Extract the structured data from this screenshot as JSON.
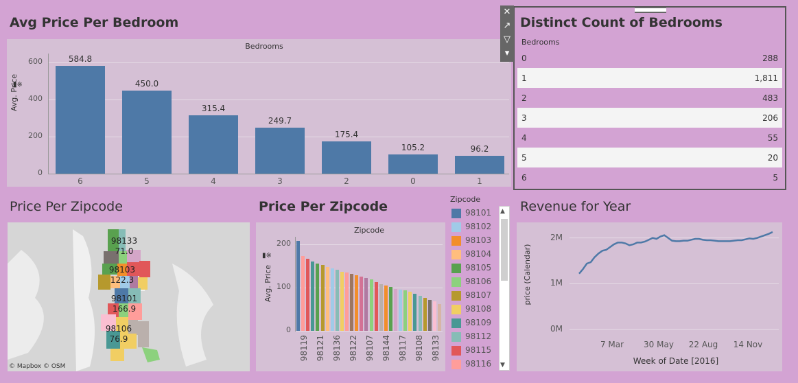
{
  "bedroom_chart": {
    "title": "Avg Price Per Bedroom",
    "header": "Bedrooms",
    "ylabel": "Avg. Price",
    "yticks": [
      "600",
      "400",
      "200",
      "0"
    ],
    "chart_data": {
      "type": "bar",
      "categories": [
        "6",
        "5",
        "4",
        "3",
        "2",
        "0",
        "1"
      ],
      "values": [
        584.8,
        450.0,
        315.4,
        249.7,
        175.4,
        105.2,
        96.2
      ],
      "value_labels": [
        "584.8",
        "450.0",
        "315.4",
        "249.7",
        "175.4",
        "105.2",
        "96.2"
      ],
      "ylim": [
        0,
        650
      ]
    }
  },
  "bedroom_table": {
    "title": "Distinct Count of Bedrooms",
    "header": "Bedrooms",
    "rows": [
      {
        "label": "0",
        "value": "288"
      },
      {
        "label": "1",
        "value": "1,811"
      },
      {
        "label": "2",
        "value": "483"
      },
      {
        "label": "3",
        "value": "206"
      },
      {
        "label": "4",
        "value": "55"
      },
      {
        "label": "5",
        "value": "20"
      },
      {
        "label": "6",
        "value": "5"
      }
    ],
    "toolbar": [
      "close-icon",
      "popout-icon",
      "filter-icon",
      "dropdown-icon"
    ]
  },
  "map": {
    "title": "Price Per Zipcode",
    "attribution": "© Mapbox © OSM",
    "labels": [
      {
        "zip": "98133",
        "value": "71.0"
      },
      {
        "zip": "98103",
        "value": "122.3"
      },
      {
        "zip": "98101",
        "value": "166.9"
      },
      {
        "zip": "98106",
        "value": "76.9"
      }
    ]
  },
  "zipcode_chart": {
    "title": "Price Per Zipcode",
    "header": "Zipcode",
    "ylabel": "Avg. Price",
    "yticks": [
      "200",
      "100",
      "0"
    ],
    "x_tick_labels": [
      "98119",
      "98121",
      "98136",
      "98122",
      "98107",
      "98144",
      "98117",
      "98108",
      "98133"
    ],
    "chart_data": {
      "type": "bar",
      "values": [
        208,
        172,
        166,
        160,
        155,
        152,
        147,
        144,
        141,
        137,
        134,
        131,
        128,
        125,
        122,
        119,
        113,
        108,
        105,
        101,
        97,
        95,
        93,
        90,
        86,
        81,
        76,
        72,
        68,
        62
      ],
      "colors": [
        "#4e79a7",
        "#ff9d9a",
        "#e15759",
        "#499894",
        "#59a14f",
        "#b6992d",
        "#ffbe7d",
        "#a0cbe8",
        "#86bcb6",
        "#f1ce63",
        "#ff9d9a",
        "#9d7660",
        "#f28e2b",
        "#d37295",
        "#b07aa1",
        "#8cd17d",
        "#e15759",
        "#bab0ac",
        "#f28e2b",
        "#59a14f",
        "#d4a6c8",
        "#a0cbe8",
        "#8cd17d",
        "#f1ce63",
        "#499894",
        "#86bcb6",
        "#b6992d",
        "#79706e",
        "#fabfd2",
        "#d7b5a6"
      ],
      "ylim": [
        0,
        225
      ]
    }
  },
  "legend": {
    "title": "Zipcode",
    "items": [
      {
        "label": "98101",
        "color": "#4e79a7"
      },
      {
        "label": "98102",
        "color": "#a0cbe8"
      },
      {
        "label": "98103",
        "color": "#f28e2b"
      },
      {
        "label": "98104",
        "color": "#ffbe7d"
      },
      {
        "label": "98105",
        "color": "#59a14f"
      },
      {
        "label": "98106",
        "color": "#8cd17d"
      },
      {
        "label": "98107",
        "color": "#b6992d"
      },
      {
        "label": "98108",
        "color": "#f1ce63"
      },
      {
        "label": "98109",
        "color": "#499894"
      },
      {
        "label": "98112",
        "color": "#86bcb6"
      },
      {
        "label": "98115",
        "color": "#e15759"
      },
      {
        "label": "98116",
        "color": "#ff9d9a"
      }
    ]
  },
  "revenue_chart": {
    "title": "Revenue for Year",
    "ylabel": "price (Calendar)",
    "xlabel": "Week of Date [2016]",
    "yticks": [
      "2M",
      "1M",
      "0M"
    ],
    "xticks": [
      "7 Mar",
      "30 May",
      "22 Aug",
      "14 Nov"
    ],
    "chart_data": {
      "type": "line",
      "x": [
        1,
        2,
        3,
        4,
        5,
        6,
        7,
        8,
        9,
        10,
        11,
        12,
        13,
        14,
        15,
        16,
        17,
        18,
        19,
        20,
        21,
        22,
        23,
        24,
        25,
        26,
        27,
        28,
        29,
        30,
        31,
        32,
        33,
        34,
        35,
        36,
        37,
        38,
        39,
        40,
        41,
        42,
        43,
        44,
        45,
        46,
        47,
        48,
        49,
        50,
        51
      ],
      "values": [
        1.22,
        1.32,
        1.44,
        1.47,
        1.58,
        1.66,
        1.72,
        1.74,
        1.8,
        1.86,
        1.9,
        1.9,
        1.88,
        1.84,
        1.86,
        1.9,
        1.9,
        1.92,
        1.96,
        2.0,
        1.98,
        2.03,
        2.06,
        2.0,
        1.94,
        1.93,
        1.93,
        1.94,
        1.94,
        1.96,
        1.98,
        1.98,
        1.96,
        1.95,
        1.95,
        1.94,
        1.93,
        1.93,
        1.93,
        1.93,
        1.94,
        1.95,
        1.95,
        1.97,
        1.99,
        1.98,
        2.0,
        2.03,
        2.06,
        2.09,
        2.13
      ],
      "ylim": [
        0,
        2.25
      ]
    }
  }
}
